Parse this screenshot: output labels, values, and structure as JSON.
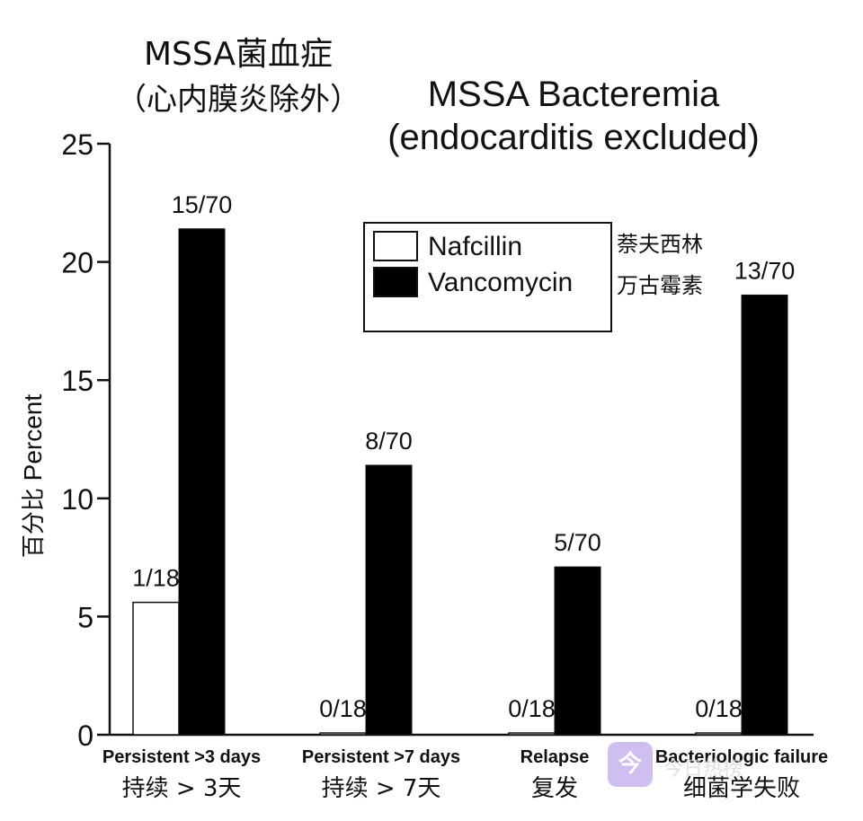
{
  "chart_data": {
    "type": "bar",
    "title_cn": "MSSA菌血症",
    "subtitle_cn": "（心内膜炎除外）",
    "title": "MSSA Bacteremia",
    "subtitle": "(endocarditis excluded)",
    "ylabel": "Percent",
    "ylabel_cn": "百分比",
    "ylim": [
      0,
      25
    ],
    "yticks": [
      0,
      5,
      10,
      15,
      20,
      25
    ],
    "categories": [
      "Persistent >3 days",
      "Persistent >7 days",
      "Relapse",
      "Bacteriologic failure"
    ],
    "categories_cn": [
      "持续 > 3天",
      "持续 > 7天",
      "复发",
      "细菌学失败"
    ],
    "series": [
      {
        "name": "Nafcillin",
        "name_cn": "萘夫西林",
        "color": "#ffffff",
        "values": [
          5.6,
          0,
          0,
          0
        ],
        "labels": [
          "1/18",
          "0/18",
          "0/18",
          "0/18"
        ]
      },
      {
        "name": "Vancomycin",
        "name_cn": "万古霉素",
        "color": "#000000",
        "values": [
          21.4,
          11.4,
          7.1,
          18.6
        ],
        "labels": [
          "15/70",
          "8/70",
          "5/70",
          "13/70"
        ]
      }
    ],
    "legend_position": "top-right"
  },
  "watermark": {
    "icon": "今",
    "text": "今日热榜"
  }
}
